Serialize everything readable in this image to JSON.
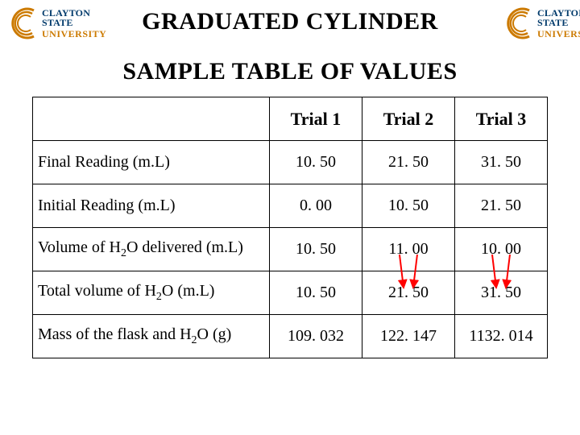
{
  "logo": {
    "line1": "CLAYTON STATE",
    "line2": "UNIVERSITY",
    "arc_stroke": "#cc7a00",
    "text_color1": "#003a6b",
    "text_color2": "#cc7a00"
  },
  "title": "GRADUATED CYLINDER",
  "subtitle": "SAMPLE TABLE OF VALUES",
  "table": {
    "columns": [
      "",
      "Trial 1",
      "Trial 2",
      "Trial 3"
    ],
    "column_widths_pct": [
      46,
      18,
      18,
      18
    ],
    "header_fontsize": 22,
    "cell_fontsize": 20,
    "border_color": "#000000",
    "rows": [
      {
        "label": "Final Reading (m.L)",
        "values": [
          "10. 50",
          "21. 50",
          "31. 50"
        ]
      },
      {
        "label": "Initial Reading (m.L)",
        "values": [
          "0. 00",
          "10. 50",
          "21. 50"
        ]
      },
      {
        "label_html": "Volume of H<sub>2</sub>O delivered (m.L)",
        "label": "Volume of H2O delivered (m.L)",
        "values": [
          "10. 50",
          "11. 00",
          "10. 00"
        ]
      },
      {
        "label_html": "Total volume of H<sub>2</sub>O (m.L)",
        "label": "Total volume of H2O (m.L)",
        "values": [
          "10. 50",
          "21. 50",
          "31. 50"
        ]
      },
      {
        "label_html": "Mass of the flask and H<sub>2</sub>O (g)",
        "label": "Mass of the flask and H2O (g)",
        "values": [
          "109. 032",
          "122. 147",
          "1132. 014"
        ]
      }
    ]
  },
  "arrows": {
    "color": "#ff0000",
    "stroke_width": 2,
    "pairs": [
      {
        "from_row": 2,
        "from_col": 1,
        "to_row": 3,
        "to_col": 1
      },
      {
        "from_row": 2,
        "from_col": 2,
        "to_row": 3,
        "to_col": 2
      }
    ]
  },
  "background_color": "#ffffff",
  "text_color": "#000000"
}
